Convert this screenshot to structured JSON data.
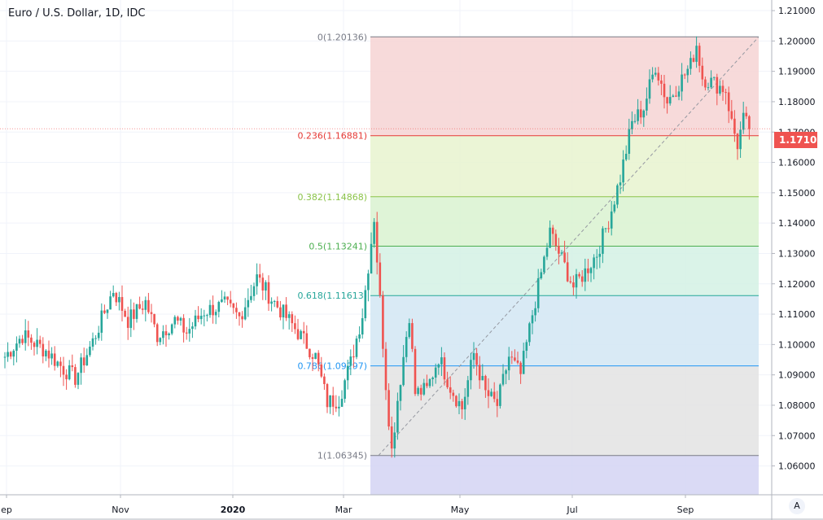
{
  "title": "Euro / U.S. Dollar, 1D, IDC",
  "current_price": "1.17106",
  "auto_label": "A",
  "colors": {
    "up": "#26a69a",
    "down": "#ef5350",
    "grid": "#f0f3fa",
    "axis": "#b2b5be"
  },
  "chart_data": {
    "type": "candlestick",
    "title": "Euro / U.S. Dollar, 1D, IDC",
    "ylim": [
      1.0505,
      1.2135
    ],
    "y_ticks": [
      "1.21000",
      "1.20000",
      "1.19000",
      "1.18000",
      "1.17000",
      "1.16000",
      "1.15000",
      "1.14000",
      "1.13000",
      "1.12000",
      "1.11000",
      "1.10000",
      "1.09000",
      "1.08000",
      "1.07000",
      "1.06000"
    ],
    "x_ticks": [
      "ep",
      "Nov",
      "2020",
      "Mar",
      "May",
      "Jul",
      "Sep"
    ],
    "x_tick_bold": [
      false,
      false,
      true,
      false,
      false,
      false,
      false
    ],
    "price_path": [
      [
        0,
        1.096
      ],
      [
        6,
        1.103
      ],
      [
        14,
        1.098
      ],
      [
        20,
        1.092
      ],
      [
        24,
        1.089
      ],
      [
        30,
        1.101
      ],
      [
        37,
        1.118
      ],
      [
        42,
        1.108
      ],
      [
        48,
        1.114
      ],
      [
        52,
        1.103
      ],
      [
        58,
        1.108
      ],
      [
        62,
        1.104
      ],
      [
        68,
        1.111
      ],
      [
        75,
        1.113
      ],
      [
        80,
        1.109
      ],
      [
        86,
        1.122
      ],
      [
        91,
        1.115
      ],
      [
        96,
        1.109
      ],
      [
        100,
        1.104
      ],
      [
        106,
        1.096
      ],
      [
        110,
        1.081
      ],
      [
        114,
        1.082
      ],
      [
        118,
        1.094
      ],
      [
        122,
        1.11
      ],
      [
        126,
        1.142
      ],
      [
        130,
        1.087
      ],
      [
        132,
        1.065
      ],
      [
        134,
        1.082
      ],
      [
        138,
        1.11
      ],
      [
        140,
        1.084
      ],
      [
        144,
        1.085
      ],
      [
        148,
        1.096
      ],
      [
        152,
        1.086
      ],
      [
        156,
        1.079
      ],
      [
        160,
        1.097
      ],
      [
        164,
        1.084
      ],
      [
        168,
        1.08
      ],
      [
        172,
        1.096
      ],
      [
        176,
        1.09
      ],
      [
        180,
        1.11
      ],
      [
        186,
        1.137
      ],
      [
        190,
        1.128
      ],
      [
        194,
        1.119
      ],
      [
        198,
        1.124
      ],
      [
        202,
        1.13
      ],
      [
        206,
        1.141
      ],
      [
        210,
        1.155
      ],
      [
        214,
        1.173
      ],
      [
        218,
        1.178
      ],
      [
        222,
        1.192
      ],
      [
        226,
        1.18
      ],
      [
        230,
        1.186
      ],
      [
        234,
        1.192
      ],
      [
        236,
        1.199
      ],
      [
        238,
        1.188
      ],
      [
        242,
        1.186
      ],
      [
        246,
        1.184
      ],
      [
        248,
        1.173
      ],
      [
        250,
        1.166
      ],
      [
        252,
        1.174
      ],
      [
        254,
        1.171
      ]
    ],
    "annotations": {
      "fibonacci_retracement": [
        {
          "label": "0(1.20136)",
          "level": 0,
          "price": 1.20136,
          "line": "#787b86",
          "fill": "#f6d3d3"
        },
        {
          "label": "0.236(1.16881)",
          "level": 0.236,
          "price": 1.16881,
          "line": "#e53935",
          "fill": "#e8f3cf"
        },
        {
          "label": "0.382(1.14868)",
          "level": 0.382,
          "price": 1.14868,
          "line": "#8bc34a",
          "fill": "#d9f2d0"
        },
        {
          "label": "0.5(1.13241)",
          "level": 0.5,
          "price": 1.13241,
          "line": "#4caf50",
          "fill": "#d3f1e4"
        },
        {
          "label": "0.618(1.11613)",
          "level": 0.618,
          "price": 1.11613,
          "line": "#26a69a",
          "fill": "#d2e6f3"
        },
        {
          "label": "0.786(1.09297)",
          "level": 0.786,
          "price": 1.09297,
          "line": "#2196f3",
          "fill": "#e3e3e3"
        },
        {
          "label": "1(1.06345)",
          "level": 1,
          "price": 1.06345,
          "line": "#787b86",
          "fill": "#d3d3f3"
        }
      ]
    },
    "grid": true
  }
}
